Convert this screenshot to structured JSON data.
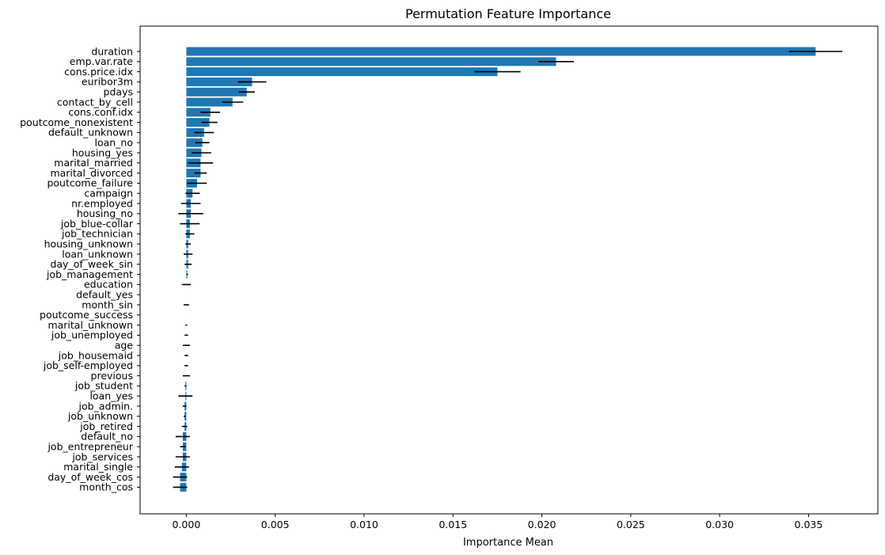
{
  "chart_data": {
    "type": "bar",
    "orientation": "horizontal",
    "title": "Permutation Feature Importance",
    "xlabel": "Importance Mean",
    "ylabel": "",
    "xlim": [
      -0.0026,
      0.0389
    ],
    "xticks": [
      0.0,
      0.005,
      0.01,
      0.015,
      0.02,
      0.025,
      0.03,
      0.035
    ],
    "xtick_labels": [
      "0.000",
      "0.005",
      "0.010",
      "0.015",
      "0.020",
      "0.025",
      "0.030",
      "0.035"
    ],
    "grid": false,
    "bar_color": "#1f77b4",
    "error_color": "#000000",
    "categories": [
      "duration",
      "emp.var.rate",
      "cons.price.idx",
      "euribor3m",
      "pdays",
      "contact_by_cell",
      "cons.conf.idx",
      "poutcome_nonexistent",
      "default_unknown",
      "loan_no",
      "housing_yes",
      "marital_married",
      "marital_divorced",
      "poutcome_failure",
      "campaign",
      "nr.employed",
      "housing_no",
      "job_blue-collar",
      "job_technician",
      "housing_unknown",
      "loan_unknown",
      "day_of_week_sin",
      "job_management",
      "education",
      "default_yes",
      "month_sin",
      "poutcome_success",
      "marital_unknown",
      "job_unemployed",
      "age",
      "job_housemaid",
      "job_self-employed",
      "previous",
      "job_student",
      "loan_yes",
      "job_admin.",
      "job_unknown",
      "job_retired",
      "default_no",
      "job_entrepreneur",
      "job_services",
      "marital_single",
      "day_of_week_cos",
      "month_cos"
    ],
    "values": [
      0.0354,
      0.0208,
      0.0175,
      0.0037,
      0.0034,
      0.0026,
      0.00135,
      0.0013,
      0.001,
      0.0009,
      0.00085,
      0.0008,
      0.0008,
      0.0006,
      0.00035,
      0.00025,
      0.00025,
      0.0002,
      0.0002,
      0.0001,
      0.0001,
      0.0001,
      5e-05,
      0.0,
      0.0,
      0.0,
      0.0,
      0.0,
      0.0,
      0.0,
      0.0,
      0.0,
      0.0,
      -5e-05,
      -5e-05,
      -0.0001,
      -0.0001,
      -0.0001,
      -0.0002,
      -0.0002,
      -0.0002,
      -0.00025,
      -0.00035,
      -0.00035
    ],
    "errors": [
      0.0015,
      0.001,
      0.0013,
      0.0008,
      0.00045,
      0.0006,
      0.00055,
      0.00045,
      0.00055,
      0.0004,
      0.00055,
      0.0007,
      0.00035,
      0.00055,
      0.0004,
      0.00055,
      0.0007,
      0.00055,
      0.00025,
      0.00015,
      0.00025,
      0.0002,
      5e-05,
      0.00025,
      0.0,
      0.00015,
      0.0,
      5e-05,
      0.0001,
      0.0002,
      0.0001,
      0.0001,
      0.0002,
      5e-05,
      0.0004,
      0.0001,
      5e-05,
      0.00015,
      0.0004,
      0.00015,
      0.0004,
      0.0004,
      0.0004,
      0.0004
    ]
  }
}
